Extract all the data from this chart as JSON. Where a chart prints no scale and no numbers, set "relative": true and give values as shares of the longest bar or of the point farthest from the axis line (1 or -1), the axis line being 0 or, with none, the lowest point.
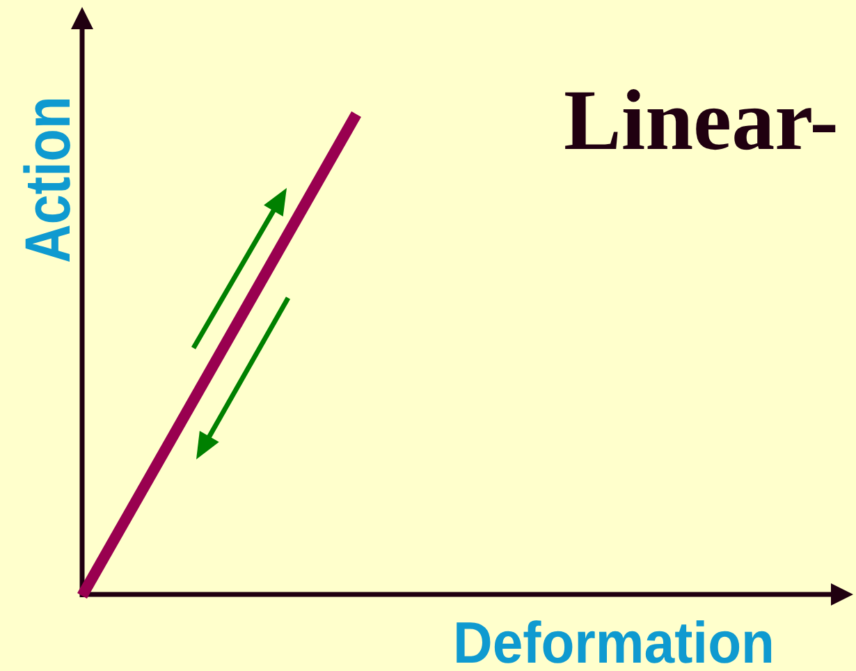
{
  "chart_data": {
    "type": "line",
    "title": "Linear-",
    "xlabel": "Deformation",
    "ylabel": "Action",
    "relative": true,
    "categories": [
      null,
      null
    ],
    "series": [
      {
        "color": "#990050",
        "values": [
          0,
          1
        ]
      }
    ]
  }
}
